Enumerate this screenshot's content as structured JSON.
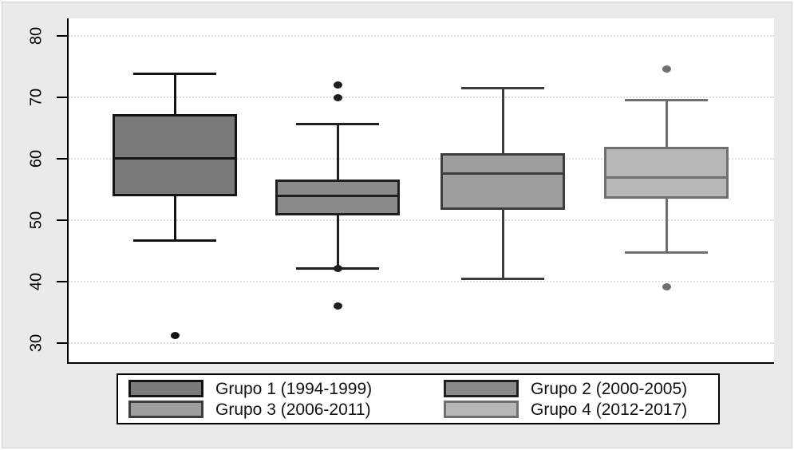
{
  "chart_data": {
    "type": "box",
    "title": "",
    "xlabel": "",
    "ylabel": "",
    "yticks": [
      30,
      40,
      50,
      60,
      70,
      80
    ],
    "ylim": [
      26.9,
      82.9
    ],
    "grid": true,
    "legend_position": "bottom",
    "series": [
      {
        "name": "Grupo 1 (1994-1999)",
        "fill": "#7b7b7b",
        "stroke": "#141414",
        "whisker_low": 46.7,
        "q1": 53.9,
        "median": 60.1,
        "q3": 67.3,
        "whisker_high": 73.8,
        "outliers": [
          31.2
        ]
      },
      {
        "name": "Grupo 2 (2000-2005)",
        "fill": "#8a8a8a",
        "stroke": "#1f1f1f",
        "whisker_low": 42.1,
        "q1": 50.8,
        "median": 54.0,
        "q3": 56.6,
        "whisker_high": 65.6,
        "outliers": [
          72.0,
          69.9,
          42.1,
          36.0
        ]
      },
      {
        "name": "Grupo 3 (2006-2011)",
        "fill": "#9e9e9e",
        "stroke": "#3d3d3d",
        "whisker_low": 40.5,
        "q1": 51.7,
        "median": 57.6,
        "q3": 60.9,
        "whisker_high": 71.5,
        "outliers": []
      },
      {
        "name": "Grupo 4 (2012-2017)",
        "fill": "#b7b7b7",
        "stroke": "#6f6f6f",
        "whisker_low": 44.7,
        "q1": 53.5,
        "median": 57.0,
        "q3": 62.0,
        "whisker_high": 69.5,
        "outliers": [
          74.6,
          39.2
        ]
      }
    ]
  },
  "colors": {
    "canvas_bg": "#e9eaec",
    "plot_bg": "#ffffff",
    "axis": "#000000",
    "gridline": "#dedede",
    "legend_bg": "#ffffff",
    "legend_border": "#000000"
  }
}
